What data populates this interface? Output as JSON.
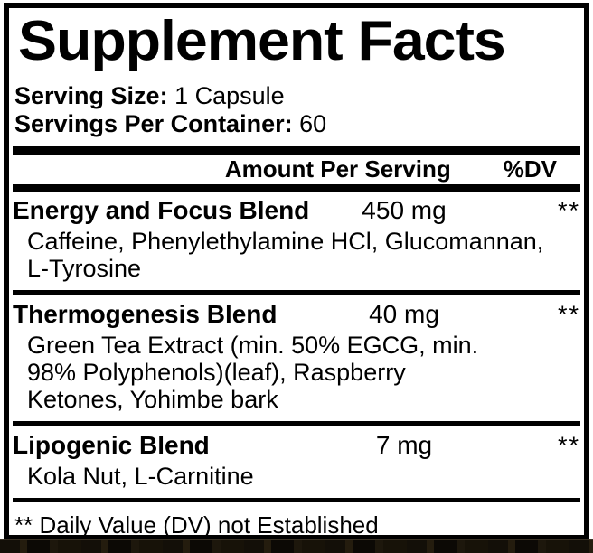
{
  "label": {
    "title": "Supplement Facts",
    "serving_size": {
      "label": "Serving Size:",
      "value": "1 Capsule"
    },
    "servings_per_container": {
      "label": "Servings Per Container:",
      "value": "60"
    },
    "header": {
      "amount": "Amount Per Serving",
      "dv": "%DV"
    },
    "blends": [
      {
        "name": "Energy and Focus Blend",
        "amount": "450 mg",
        "dv": "**",
        "ingredients": "Caffeine, Phenylethylamine HCl, Glucomannan, L-Tyrosine"
      },
      {
        "name": "Thermogenesis Blend",
        "amount": "40 mg",
        "dv": "**",
        "ingredients": "Green Tea Extract (min. 50% EGCG, min. 98% Polyphenols)(leaf), Raspberry Ketones, Yohimbe bark"
      },
      {
        "name": "Lipogenic Blend",
        "amount": "7 mg",
        "dv": "**",
        "ingredients": "Kola Nut, L-Carnitine"
      }
    ],
    "footnote": "** Daily Value (DV) not Established",
    "colors": {
      "text": "#000000",
      "background": "#ffffff",
      "border": "#000000",
      "photo_strip": "#16110a"
    }
  }
}
